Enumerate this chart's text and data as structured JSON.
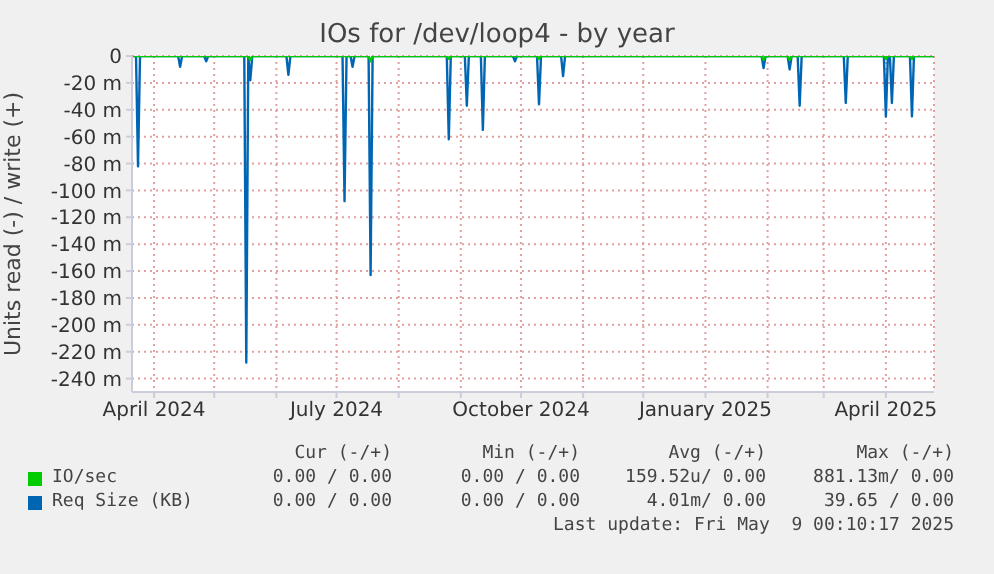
{
  "chart_data": {
    "type": "line",
    "title": "IOs for /dev/loop4 - by year",
    "ylabel": "Units read (-) / write (+)",
    "xlim": [
      "2024-03-21",
      "2025-04-25"
    ],
    "xticks": [
      {
        "value": "2024-04-01",
        "label": "April 2024"
      },
      {
        "value": "2024-05-01",
        "label": null
      },
      {
        "value": "2024-06-01",
        "label": null
      },
      {
        "value": "2024-07-01",
        "label": "July 2024"
      },
      {
        "value": "2024-08-01",
        "label": null
      },
      {
        "value": "2024-09-01",
        "label": null
      },
      {
        "value": "2024-10-01",
        "label": "October 2024"
      },
      {
        "value": "2024-11-01",
        "label": null
      },
      {
        "value": "2024-12-01",
        "label": null
      },
      {
        "value": "2025-01-01",
        "label": "January 2025"
      },
      {
        "value": "2025-02-01",
        "label": null
      },
      {
        "value": "2025-03-01",
        "label": null
      },
      {
        "value": "2025-04-01",
        "label": "April 2025"
      }
    ],
    "ylim": [
      -250,
      0
    ],
    "yticks": [
      {
        "value": 0,
        "label": "0"
      },
      {
        "value": -20,
        "label": "-20 m"
      },
      {
        "value": -40,
        "label": "-40 m"
      },
      {
        "value": -60,
        "label": "-60 m"
      },
      {
        "value": -80,
        "label": "-80 m"
      },
      {
        "value": -100,
        "label": "-100 m"
      },
      {
        "value": -120,
        "label": "-120 m"
      },
      {
        "value": -140,
        "label": "-140 m"
      },
      {
        "value": -160,
        "label": "-160 m"
      },
      {
        "value": -180,
        "label": "-180 m"
      },
      {
        "value": -200,
        "label": "-200 m"
      },
      {
        "value": -220,
        "label": "-220 m"
      },
      {
        "value": -240,
        "label": "-240 m"
      }
    ],
    "grid": true,
    "legend": "bottom",
    "series": [
      {
        "name": "IO/sec",
        "color": "#00cc00",
        "x": [
          "2024-03-21",
          "2024-05-18",
          "2024-05-19",
          "2024-05-20",
          "2024-07-17",
          "2024-07-18",
          "2024-07-19",
          "2024-08-25",
          "2024-08-26",
          "2024-08-27",
          "2024-10-09",
          "2024-10-10",
          "2024-10-11",
          "2025-01-29",
          "2025-01-30",
          "2025-01-31",
          "2025-02-11",
          "2025-02-12",
          "2025-02-13",
          "2025-03-31",
          "2025-04-01",
          "2025-04-02",
          "2025-04-13",
          "2025-04-14",
          "2025-04-15",
          "2025-04-25"
        ],
        "values": [
          0,
          0,
          -3,
          0,
          0,
          -4,
          0,
          0,
          -2,
          0,
          0,
          -2,
          0,
          0,
          -3,
          0,
          0,
          -3,
          0,
          0,
          -2,
          0,
          0,
          -2,
          0,
          0
        ]
      },
      {
        "name": "Req Size (KB)",
        "color": "#0066b3",
        "x": [
          "2024-03-21",
          "2024-03-23",
          "2024-03-24",
          "2024-03-25",
          "2024-04-13",
          "2024-04-14",
          "2024-04-15",
          "2024-04-26",
          "2024-04-27",
          "2024-04-28",
          "2024-05-16",
          "2024-05-17",
          "2024-05-18",
          "2024-05-19",
          "2024-05-20",
          "2024-06-06",
          "2024-06-07",
          "2024-06-08",
          "2024-07-04",
          "2024-07-05",
          "2024-07-06",
          "2024-07-08",
          "2024-07-09",
          "2024-07-10",
          "2024-07-17",
          "2024-07-18",
          "2024-07-19",
          "2024-08-25",
          "2024-08-26",
          "2024-08-27",
          "2024-09-03",
          "2024-09-04",
          "2024-09-05",
          "2024-09-11",
          "2024-09-12",
          "2024-09-13",
          "2024-09-27",
          "2024-09-28",
          "2024-09-29",
          "2024-10-09",
          "2024-10-10",
          "2024-10-11",
          "2024-10-21",
          "2024-10-22",
          "2024-10-23",
          "2025-01-29",
          "2025-01-30",
          "2025-01-31",
          "2025-02-11",
          "2025-02-12",
          "2025-02-13",
          "2025-02-16",
          "2025-02-17",
          "2025-02-18",
          "2025-03-11",
          "2025-03-12",
          "2025-03-13",
          "2025-03-31",
          "2025-04-01",
          "2025-04-02",
          "2025-04-03",
          "2025-04-04",
          "2025-04-05",
          "2025-04-13",
          "2025-04-14",
          "2025-04-15",
          "2025-04-25"
        ],
        "values": [
          0,
          0,
          -82,
          0,
          0,
          -8,
          0,
          0,
          -4,
          0,
          0,
          -228,
          0,
          -18,
          0,
          0,
          -14,
          0,
          0,
          -108,
          0,
          0,
          -8,
          0,
          0,
          -163,
          0,
          0,
          -62,
          0,
          0,
          -37,
          0,
          0,
          -55,
          0,
          0,
          -4,
          0,
          0,
          -36,
          0,
          0,
          -15,
          0,
          0,
          -9,
          0,
          0,
          -10,
          0,
          0,
          -37,
          0,
          0,
          -35,
          0,
          0,
          -45,
          0,
          0,
          -35,
          0,
          0,
          -45,
          0,
          0
        ]
      }
    ],
    "annotations": [
      "Cur (-/+)",
      "Min (-/+)",
      "Avg (-/+)",
      "Max (-/+)",
      "0.00 / 0.00",
      "0.00 / 0.00",
      "159.52u/ 0.00",
      "881.13m/ 0.00",
      "0.00 / 0.00",
      "0.00 / 0.00",
      "4.01m/ 0.00",
      "39.65 / 0.00",
      "Last update: Fri May  9 00:10:17 2025"
    ]
  }
}
